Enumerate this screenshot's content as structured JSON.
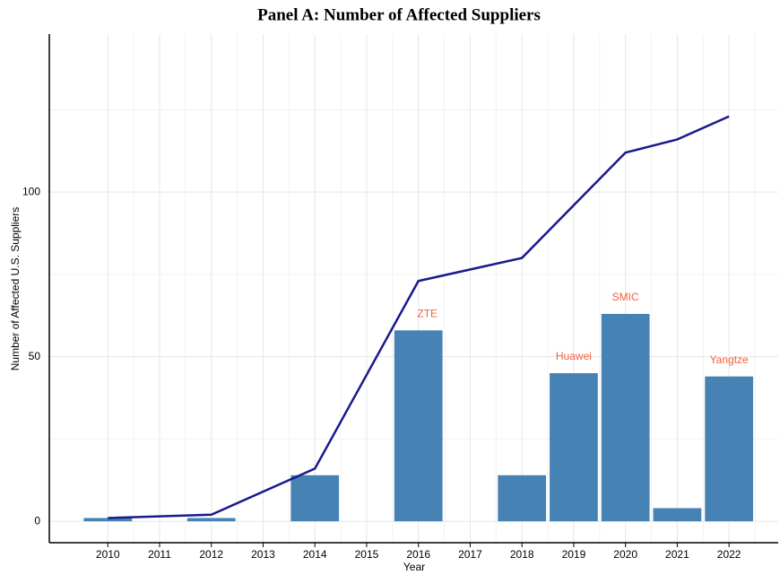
{
  "chart_data": {
    "type": "bar",
    "title": "Panel A: Number of Affected Suppliers",
    "xlabel": "Year",
    "ylabel": "Number of Affected U.S. Suppliers",
    "xlim": [
      2008.87,
      2022.95
    ],
    "xticks": [
      2010,
      2011,
      2012,
      2013,
      2014,
      2015,
      2016,
      2017,
      2018,
      2019,
      2020,
      2021,
      2022
    ],
    "ylim": [
      -6.5,
      148
    ],
    "yticks": [
      0,
      50,
      100
    ],
    "grid": true,
    "series": [
      {
        "type": "bar",
        "color": "#4682b4",
        "x": [
          2010,
          2011,
          2012,
          2013,
          2014,
          2015,
          2016,
          2017,
          2018,
          2019,
          2020,
          2021,
          2022
        ],
        "values": [
          1,
          0,
          1,
          0,
          14,
          0,
          58,
          0,
          14,
          45,
          63,
          4,
          44
        ]
      },
      {
        "type": "line",
        "color": "#1a1a8c",
        "x": [
          2010,
          2012,
          2014,
          2016,
          2018,
          2020,
          2021,
          2022
        ],
        "values": [
          1,
          2,
          16,
          73,
          80,
          112,
          116,
          123
        ]
      }
    ],
    "annotations": [
      {
        "text": "ZTE",
        "x": 2016
      },
      {
        "text": "Huawei",
        "x": 2019
      },
      {
        "text": "SMIC",
        "x": 2020
      },
      {
        "text": "Yangtze",
        "x": 2022
      }
    ],
    "annotation_color": "#f4603e"
  }
}
